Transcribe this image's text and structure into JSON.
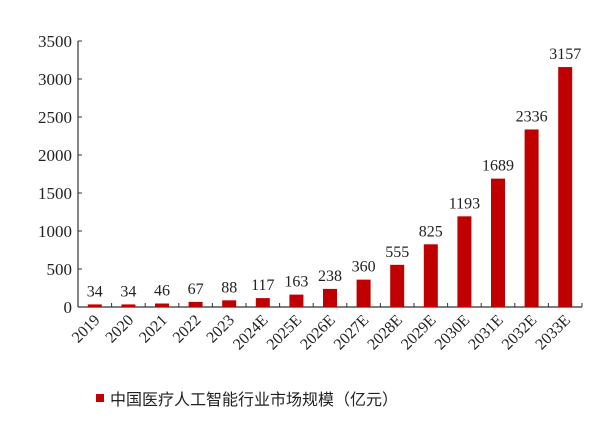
{
  "chart_data": {
    "type": "bar",
    "title": "",
    "xlabel": "",
    "ylabel": "",
    "categories": [
      "2019",
      "2020",
      "2021",
      "2022",
      "2023",
      "2024E",
      "2025E",
      "2026E",
      "2027E",
      "2028E",
      "2029E",
      "2030E",
      "2031E",
      "2032E",
      "2033E"
    ],
    "series": [
      {
        "name": "中国医疗人工智能行业市场规模（亿元）",
        "color": "#c00000",
        "values": [
          34,
          34,
          46,
          67,
          88,
          117,
          163,
          238,
          360,
          555,
          825,
          1193,
          1689,
          2336,
          3157
        ]
      }
    ],
    "data_labels": [
      "34",
      "34",
      "46",
      "67",
      "88",
      "117",
      "163",
      "238",
      "360",
      "555",
      "825",
      "1193",
      "1689",
      "2336",
      "3157"
    ],
    "y_ticks": [
      0,
      500,
      1000,
      1500,
      2000,
      2500,
      3000,
      3500
    ],
    "ylim": [
      0,
      3500
    ],
    "grid": false,
    "legend_position": "bottom"
  },
  "legend": {
    "label": "中国医疗人工智能行业市场规模（亿元）"
  }
}
